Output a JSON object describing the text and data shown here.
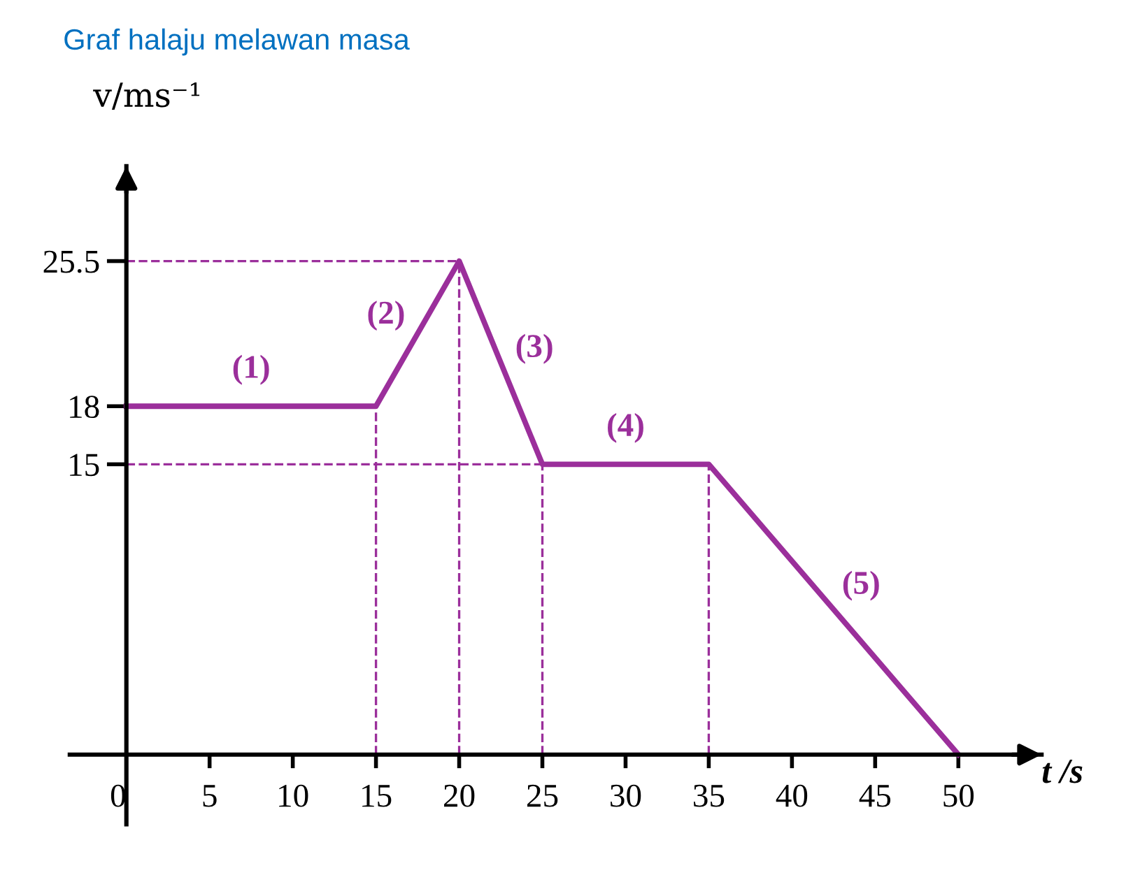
{
  "chart_data": {
    "type": "line",
    "title": "Graf halaju melawan masa",
    "xlabel": "t /s",
    "ylabel": "v/ms⁻¹",
    "x": [
      0,
      15,
      20,
      25,
      35,
      50
    ],
    "series": [
      {
        "color": "#9b2f9b",
        "values": [
          18,
          18,
          25.5,
          15,
          15,
          0
        ]
      }
    ],
    "xlim": [
      -3.4,
      55
    ],
    "ylim": [
      -3.6,
      30.4
    ],
    "xticks": [
      0,
      5,
      10,
      15,
      20,
      25,
      30,
      35,
      40,
      45,
      50
    ],
    "yticks": [
      15,
      18,
      25.5
    ],
    "ref_lines": [
      {
        "axis": "x",
        "value": 15,
        "color": "#9b2f9b",
        "line_style": "dashed"
      },
      {
        "axis": "x",
        "value": 20,
        "color": "#9b2f9b",
        "line_style": "dashed"
      },
      {
        "axis": "x",
        "value": 25,
        "color": "#9b2f9b",
        "line_style": "dashed"
      },
      {
        "axis": "x",
        "value": 35,
        "color": "#9b2f9b",
        "line_style": "dashed"
      },
      {
        "axis": "y",
        "value": 25.5,
        "color": "#9b2f9b",
        "line_style": "dashed"
      },
      {
        "axis": "y",
        "value": 15,
        "color": "#9b2f9b",
        "line_style": "dashed"
      }
    ],
    "annotations": [
      "(1)",
      "(2)",
      "(3)",
      "(4)",
      "(5)"
    ],
    "grid": false,
    "legend": false,
    "marker": "none",
    "line_style": "solid"
  }
}
